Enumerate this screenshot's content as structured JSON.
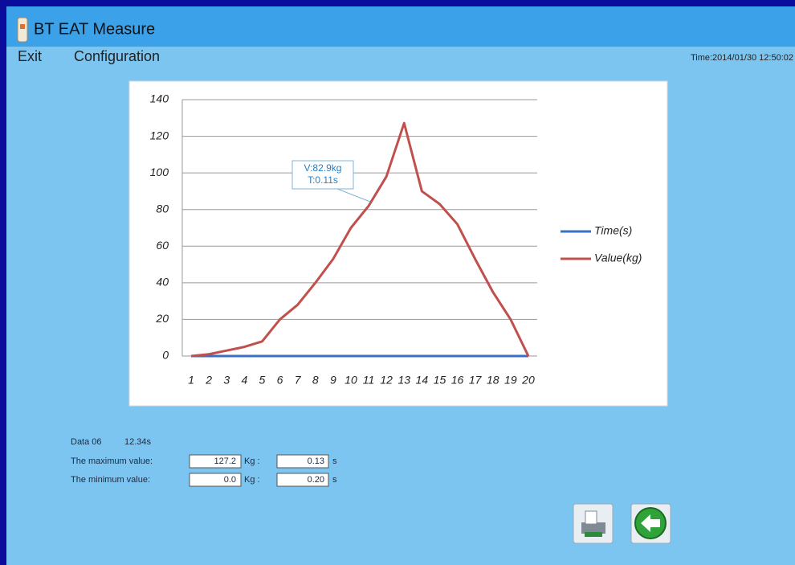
{
  "header": {
    "title": "BT EAT Measure",
    "menu": [
      "Exit",
      "Configuration"
    ],
    "time": "Time:2014/01/30  12:50:02"
  },
  "chart_data": {
    "type": "line",
    "categories": [
      "1",
      "2",
      "3",
      "4",
      "5",
      "6",
      "7",
      "8",
      "9",
      "10",
      "11",
      "12",
      "13",
      "14",
      "15",
      "16",
      "17",
      "18",
      "19",
      "20"
    ],
    "series": [
      {
        "name": "Time(s)",
        "color": "#3a70c2",
        "values": [
          0,
          0,
          0,
          0,
          0,
          0,
          0,
          0,
          0,
          0,
          0,
          0,
          0,
          0,
          0,
          0,
          0,
          0,
          0,
          0
        ]
      },
      {
        "name": "Value(kg)",
        "color": "#c0504d",
        "values": [
          0,
          1,
          3,
          5,
          8,
          20,
          28,
          40,
          53,
          70,
          82,
          98,
          127.2,
          90,
          83,
          72,
          53,
          35,
          20,
          0
        ]
      }
    ],
    "ylim": [
      0,
      140
    ],
    "yticks": [
      0,
      20,
      40,
      60,
      80,
      100,
      120,
      140
    ],
    "grid": true,
    "legend": "right",
    "annotation": [
      "V:82.9kg",
      "T:0.11s"
    ]
  },
  "info": {
    "data_label": "Data 06",
    "data_time": "12.34s",
    "rows": [
      {
        "label": "The maximum value:",
        "value": "127.2",
        "unit": "Kg :",
        "time": "0.13",
        "time_unit": "s"
      },
      {
        "label": "The minimum value:",
        "value": "0.0",
        "unit": "Kg :",
        "time": "0.20",
        "time_unit": "s"
      }
    ]
  }
}
